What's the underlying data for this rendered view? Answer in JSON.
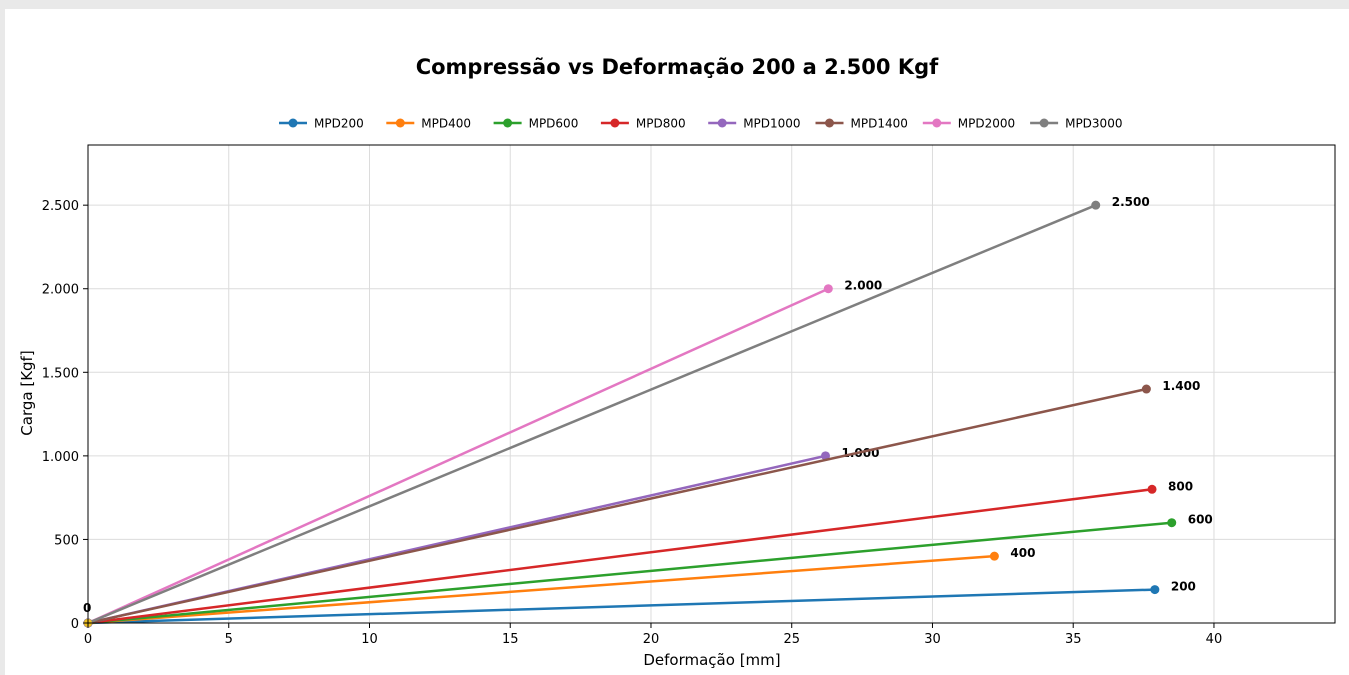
{
  "chart_data": {
    "type": "line",
    "title": "Compressão vs Deformação 200 a 2.500 Kgf",
    "xlabel": "Deformação [mm]",
    "ylabel": "Carga [Kgf]",
    "xlim": [
      0,
      44.3
    ],
    "ylim": [
      0,
      2500
    ],
    "x_ticks": [
      0,
      5,
      10,
      15,
      20,
      25,
      30,
      35,
      40
    ],
    "x_tick_labels": [
      "0",
      "5",
      "10",
      "15",
      "20",
      "25",
      "30",
      "35",
      "40"
    ],
    "y_ticks": [
      0,
      500,
      1000,
      1500,
      2000,
      2500
    ],
    "y_tick_labels": [
      "0",
      "500",
      "1.000",
      "1.500",
      "2.000",
      "2.500"
    ],
    "grid": true,
    "legend_position": "top-center",
    "origin_label": "0",
    "series": [
      {
        "name": "MPD200",
        "color": "#1f77b4",
        "x": [
          0,
          37.9
        ],
        "y": [
          0,
          200
        ],
        "end_label": "200"
      },
      {
        "name": "MPD400",
        "color": "#ff7f0e",
        "x": [
          0,
          32.2
        ],
        "y": [
          0,
          400
        ],
        "end_label": "400"
      },
      {
        "name": "MPD600",
        "color": "#2ca02c",
        "x": [
          0,
          38.5
        ],
        "y": [
          0,
          600
        ],
        "end_label": "600"
      },
      {
        "name": "MPD800",
        "color": "#d62728",
        "x": [
          0,
          37.8
        ],
        "y": [
          0,
          800
        ],
        "end_label": "800"
      },
      {
        "name": "MPD1000",
        "color": "#9467bd",
        "x": [
          0,
          26.2
        ],
        "y": [
          0,
          1000
        ],
        "end_label": "1.000"
      },
      {
        "name": "MPD1400",
        "color": "#8c564b",
        "x": [
          0,
          37.6
        ],
        "y": [
          0,
          1400
        ],
        "end_label": "1.400"
      },
      {
        "name": "MPD2000",
        "color": "#e377c2",
        "x": [
          0,
          26.3
        ],
        "y": [
          0,
          2000
        ],
        "end_label": "2.000"
      },
      {
        "name": "MPD3000",
        "color": "#7f7f7f",
        "x": [
          0,
          35.8
        ],
        "y": [
          0,
          2500
        ],
        "end_label": "2.500"
      }
    ]
  }
}
